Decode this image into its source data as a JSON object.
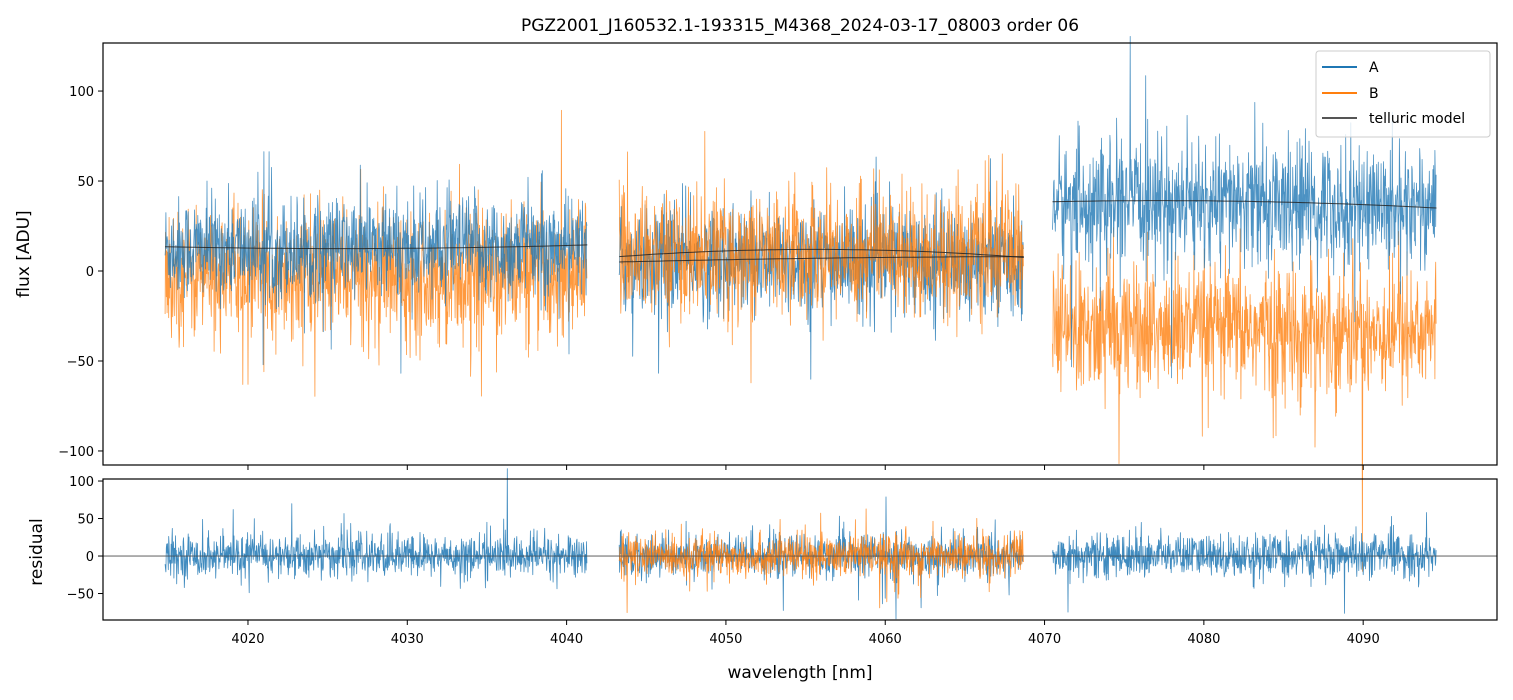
{
  "chart_data": [
    {
      "type": "line",
      "title": "PGZ2001_J160532.1-193315_M4368_2024-03-17_08003  order 06",
      "xlabel": "",
      "ylabel": "flux [ADU]",
      "xlim": [
        4010.9,
        4098.4
      ],
      "ylim": [
        -107.8,
        126.7
      ],
      "xticks": [
        4020,
        4030,
        4040,
        4050,
        4060,
        4070,
        4080,
        4090
      ],
      "yticks": [
        -100,
        -50,
        0,
        50,
        100
      ],
      "ytick_labels": [
        "−100",
        "−50",
        "0",
        "50",
        "100"
      ],
      "legend": {
        "placement": "top-right",
        "entries": [
          "A",
          "B",
          "telluric model"
        ]
      },
      "colors": {
        "A": "#1f77b4",
        "B": "#ff7f0e",
        "telluric model": "#333333"
      },
      "segments": [
        {
          "range": [
            4014.8,
            4041.3
          ],
          "A_mean": 13,
          "A_std": 14,
          "B_mean": -2,
          "B_std": 18,
          "telluric": [
            [
              4014.8,
              13.5
            ],
            [
              4028,
              12.5
            ],
            [
              4041.3,
              14.5
            ]
          ]
        },
        {
          "range": [
            4043.3,
            4068.7
          ],
          "A_mean": 6,
          "A_std": 15,
          "B_mean": 10,
          "B_std": 17,
          "telluric": [
            [
              4043.3,
              8
            ],
            [
              4055,
              12
            ],
            [
              4068.7,
              7.5
            ]
          ],
          "telluric_2": [
            [
              4043.3,
              5
            ],
            [
              4055,
              7
            ],
            [
              4068.7,
              8
            ]
          ]
        },
        {
          "range": [
            4070.5,
            4094.6
          ],
          "A_mean": 37,
          "A_std": 17,
          "B_mean": -33,
          "B_std": 18,
          "telluric": [
            [
              4070.5,
              38.5
            ],
            [
              4080,
              39
            ],
            [
              4094.6,
              35
            ]
          ]
        }
      ]
    },
    {
      "type": "line",
      "xlabel": "wavelength [nm]",
      "ylabel": "residual",
      "xlim": [
        4010.9,
        4098.4
      ],
      "ylim": [
        -85.3,
        102.7
      ],
      "xticks": [
        4020,
        4030,
        4040,
        4050,
        4060,
        4070,
        4080,
        4090
      ],
      "yticks": [
        -50,
        0,
        50,
        100
      ],
      "ytick_labels": [
        "−50",
        "0",
        "50",
        "100"
      ],
      "residual_std": 14,
      "series_segments": {
        "A": [
          0,
          1,
          2
        ],
        "B": [
          1
        ]
      }
    }
  ]
}
